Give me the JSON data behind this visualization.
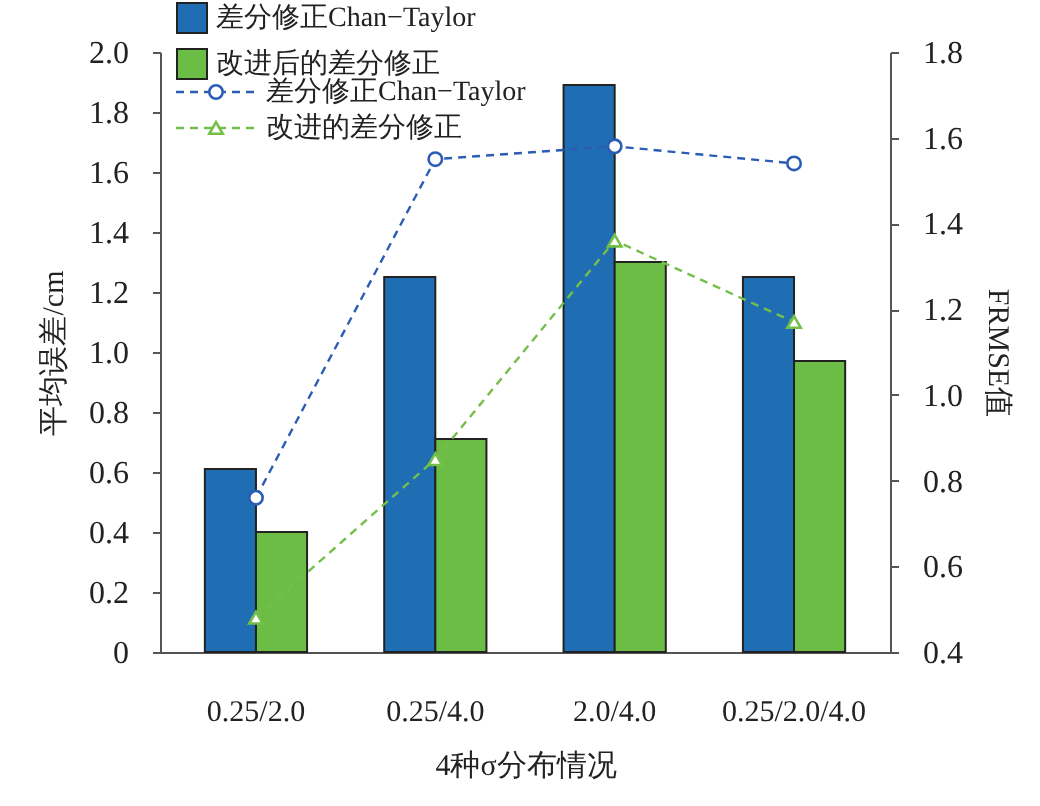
{
  "chart_data": {
    "type": "bar",
    "categories": [
      "0.25/2.0",
      "0.25/4.0",
      "2.0/4.0",
      "0.25/2.0/4.0"
    ],
    "xlabel": "4种σ分布情况",
    "ylabel": "平均误差/cm",
    "y2label": "FRMSE值",
    "series": [
      {
        "name": "差分修正Chan−Taylor",
        "type": "bar",
        "color": "#1f6db3",
        "values": [
          0.61,
          1.25,
          1.89,
          1.25
        ]
      },
      {
        "name": "改进后的差分修正",
        "type": "bar",
        "color": "#6cbd45",
        "values": [
          0.4,
          0.71,
          1.3,
          0.97
        ]
      },
      {
        "name": "差分修正Chan−Taylor",
        "type": "line",
        "axis": "y2",
        "color": "#2c5db5",
        "marker": "circle",
        "line_style": "dashed",
        "values": [
          0.76,
          1.55,
          1.58,
          1.54
        ]
      },
      {
        "name": "改进的差分修正",
        "type": "line",
        "axis": "y2",
        "color": "#74bf4a",
        "marker": "triangle",
        "line_style": "dashed",
        "values": [
          0.48,
          0.85,
          1.36,
          1.17
        ]
      }
    ],
    "ylim": [
      0,
      2.0
    ],
    "yticks": [
      0,
      0.2,
      0.4,
      0.6,
      0.8,
      {
        "value": 1,
        "label": "1.0"
      },
      1.2,
      1.4,
      1.6,
      1.8,
      {
        "value": 2,
        "label": "2.0"
      }
    ],
    "y2lim": [
      0.4,
      1.8
    ],
    "y2ticks": [
      0.4,
      0.6,
      0.8,
      {
        "value": 1,
        "label": "1.0"
      },
      1.2,
      1.4,
      1.6,
      1.8
    ],
    "grid": false,
    "legend": "top left"
  }
}
